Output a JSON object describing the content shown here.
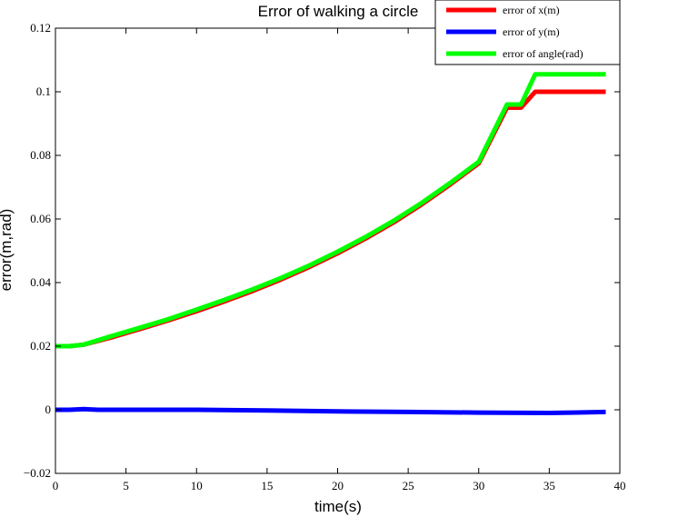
{
  "chart_data": {
    "type": "line",
    "title": "Error of walking a circle",
    "xlabel": "time(s)",
    "ylabel": "error(m,rad)",
    "xlim": [
      0,
      40
    ],
    "ylim": [
      -0.02,
      0.12
    ],
    "xticks": [
      0,
      5,
      10,
      15,
      20,
      25,
      30,
      35,
      40
    ],
    "xtick_labels": [
      "0",
      "5",
      "10",
      "15",
      "20",
      "25",
      "30",
      "35",
      "40"
    ],
    "yticks": [
      -0.02,
      0,
      0.02,
      0.04,
      0.06,
      0.08,
      0.1,
      0.12
    ],
    "ytick_labels": [
      "−0.02",
      "0",
      "0.02",
      "0.04",
      "0.06",
      "0.08",
      "0.1",
      "0.12"
    ],
    "grid": false,
    "legend_position": "top-right",
    "series": [
      {
        "name": "error of x(m)",
        "color": "#ff0000",
        "x": [
          0,
          1,
          2,
          4,
          6,
          8,
          10,
          12,
          14,
          16,
          18,
          20,
          22,
          24,
          26,
          28,
          30,
          32,
          33,
          34,
          35,
          36,
          37,
          38,
          39
        ],
        "y": [
          0.02,
          0.02,
          0.0205,
          0.0228,
          0.0254,
          0.0281,
          0.031,
          0.0341,
          0.0374,
          0.041,
          0.0449,
          0.0492,
          0.0539,
          0.059,
          0.0647,
          0.0709,
          0.0775,
          0.095,
          0.095,
          0.1,
          0.1,
          0.1,
          0.1,
          0.1,
          0.1
        ]
      },
      {
        "name": "error of y(m)",
        "color": "#0000ff",
        "x": [
          0,
          1,
          2,
          3,
          5,
          10,
          15,
          20,
          25,
          30,
          35,
          39
        ],
        "y": [
          0.0,
          0.0,
          0.0002,
          0.0,
          0.0,
          0.0,
          -0.0002,
          -0.0005,
          -0.0007,
          -0.0009,
          -0.001,
          -0.0007
        ]
      },
      {
        "name": "error of angle(rad)",
        "color": "#00ff00",
        "x": [
          0,
          1,
          2,
          4,
          6,
          8,
          10,
          12,
          14,
          16,
          18,
          20,
          22,
          24,
          26,
          28,
          30,
          32,
          33,
          34,
          35,
          36,
          37,
          38,
          39
        ],
        "y": [
          0.02,
          0.02,
          0.0205,
          0.0232,
          0.0258,
          0.0285,
          0.0315,
          0.0346,
          0.0379,
          0.0415,
          0.0454,
          0.0497,
          0.0544,
          0.0595,
          0.0652,
          0.0714,
          0.078,
          0.096,
          0.096,
          0.1055,
          0.1055,
          0.1055,
          0.1055,
          0.1055,
          0.1055
        ]
      }
    ]
  }
}
